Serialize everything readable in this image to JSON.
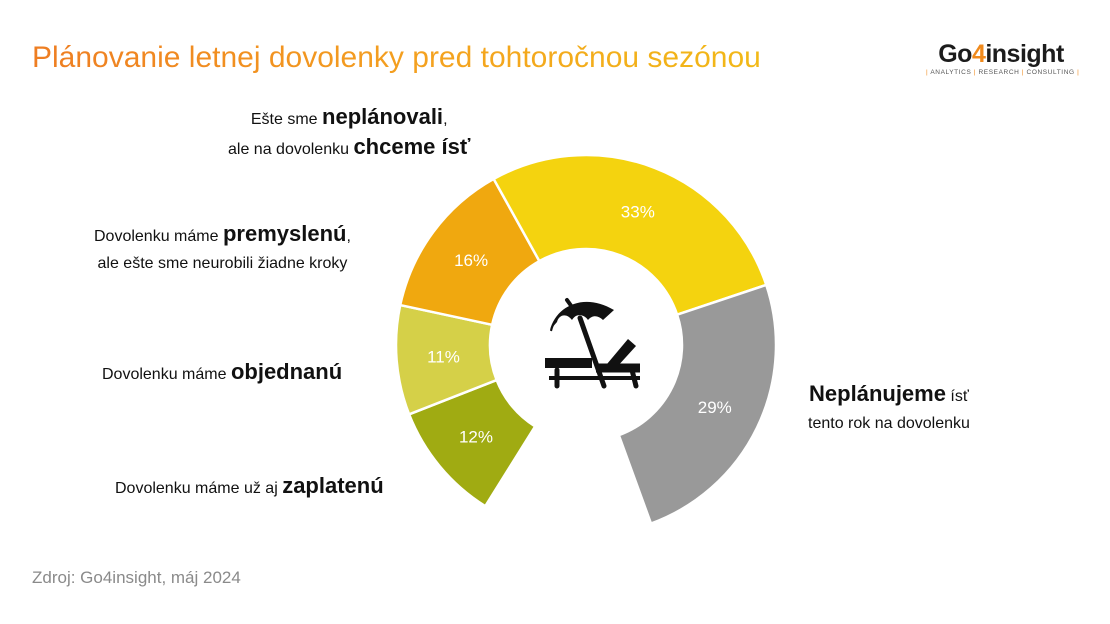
{
  "title": "Plánovanie letnej dovolenky pred tohtoročnou sezónou",
  "logo": {
    "part1": "Go",
    "part2": "4",
    "part3": "insight",
    "tagline_1": "ANALYTICS",
    "tagline_2": "RESEARCH",
    "tagline_3": "CONSULTING"
  },
  "labels": {
    "chceme_line1_pre": "Ešte sme ",
    "chceme_line1_bold": "neplánovali",
    "chceme_line1_post": ",",
    "chceme_line2_pre": "ale na dovolenku ",
    "chceme_line2_bold": "chceme ísť",
    "premyslenu_line1_pre": "Dovolenku máme ",
    "premyslenu_line1_bold": "premyslenú",
    "premyslenu_line1_post": ",",
    "premyslenu_line2": "ale ešte sme neurobili žiadne kroky",
    "objednanu_pre": "Dovolenku máme ",
    "objednanu_bold": "objednanú",
    "zaplatenu_pre": "Dovolenku máme už aj ",
    "zaplatenu_bold": "zaplatenú",
    "neplanujeme_bold": "Neplánujeme",
    "neplanujeme_post": " ísť",
    "neplanujeme_line2": "tento rok na dovolenku"
  },
  "source": "Zdroj: Go4insight, máj 2024",
  "center_icon": "beach-umbrella-sunbed-icon",
  "chart_data": {
    "type": "pie",
    "style": "open donut (arc gap at bottom)",
    "title": "Plánovanie letnej dovolenky pred tohtoročnou sezónou",
    "slices": [
      {
        "label": "Dovolenku máme už aj zaplatenú",
        "value": 12,
        "display": "12%",
        "color": "#a0ab12"
      },
      {
        "label": "Dovolenku máme objednanú",
        "value": 11,
        "display": "11%",
        "color": "#d5d048"
      },
      {
        "label": "Dovolenku máme premyslenú, ale ešte sme neurobili žiadne kroky",
        "value": 16,
        "display": "16%",
        "color": "#f0a80f"
      },
      {
        "label": "Ešte sme neplánovali, ale na dovolenku chceme ísť",
        "value": 33,
        "display": "33%",
        "color": "#f4d30f"
      },
      {
        "label": "Neplánujeme ísť tento rok na dovolenku",
        "value": 29,
        "display": "29%",
        "color": "#999999"
      }
    ]
  }
}
